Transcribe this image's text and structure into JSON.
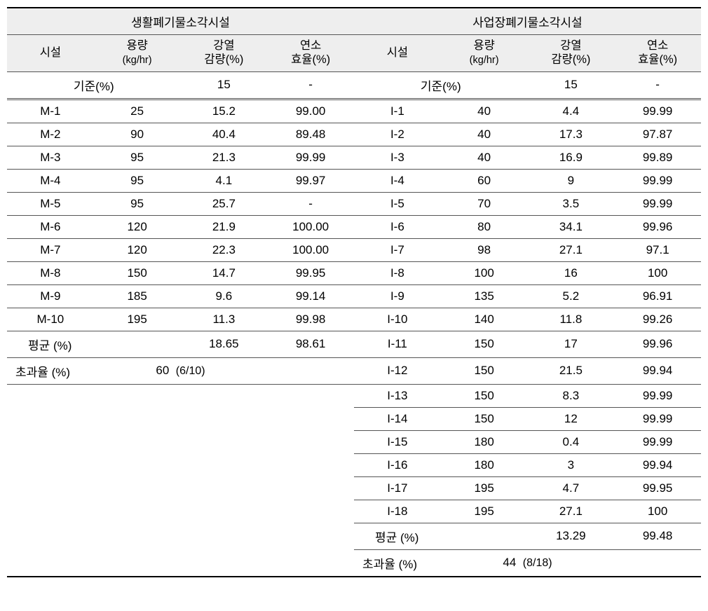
{
  "headers": {
    "left_title": "생활폐기물소각시설",
    "right_title": "사업장폐기물소각시설",
    "col_facility": "시설",
    "col_capacity": "용량",
    "col_capacity_unit": "(kg/hr)",
    "col_ignition": "강열",
    "col_ignition2": "감량(%)",
    "col_combustion": "연소",
    "col_combustion2": "효율(%)"
  },
  "criterion": {
    "label": "기준(%)",
    "val1": "15",
    "val2": "-"
  },
  "left_rows": [
    {
      "f": "M-1",
      "c": "25",
      "i": "15.2",
      "e": "99.00"
    },
    {
      "f": "M-2",
      "c": "90",
      "i": "40.4",
      "e": "89.48"
    },
    {
      "f": "M-3",
      "c": "95",
      "i": "21.3",
      "e": "99.99"
    },
    {
      "f": "M-4",
      "c": "95",
      "i": "4.1",
      "e": "99.97"
    },
    {
      "f": "M-5",
      "c": "95",
      "i": "25.7",
      "e": "-"
    },
    {
      "f": "M-6",
      "c": "120",
      "i": "21.9",
      "e": "100.00"
    },
    {
      "f": "M-7",
      "c": "120",
      "i": "22.3",
      "e": "100.00"
    },
    {
      "f": "M-8",
      "c": "150",
      "i": "14.7",
      "e": "99.95"
    },
    {
      "f": "M-9",
      "c": "185",
      "i": "9.6",
      "e": "99.14"
    },
    {
      "f": "M-10",
      "c": "195",
      "i": "11.3",
      "e": "99.98"
    }
  ],
  "left_avg": {
    "label": "평균 (%)",
    "i": "18.65",
    "e": "98.61"
  },
  "left_exceed": {
    "label": "초과율 (%)",
    "val": "60",
    "detail": "(6/10)"
  },
  "right_rows": [
    {
      "f": "I-1",
      "c": "40",
      "i": "4.4",
      "e": "99.99"
    },
    {
      "f": "I-2",
      "c": "40",
      "i": "17.3",
      "e": "97.87"
    },
    {
      "f": "I-3",
      "c": "40",
      "i": "16.9",
      "e": "99.89"
    },
    {
      "f": "I-4",
      "c": "60",
      "i": "9",
      "e": "99.99"
    },
    {
      "f": "I-5",
      "c": "70",
      "i": "3.5",
      "e": "99.99"
    },
    {
      "f": "I-6",
      "c": "80",
      "i": "34.1",
      "e": "99.96"
    },
    {
      "f": "I-7",
      "c": "98",
      "i": "27.1",
      "e": "97.1"
    },
    {
      "f": "I-8",
      "c": "100",
      "i": "16",
      "e": "100"
    },
    {
      "f": "I-9",
      "c": "135",
      "i": "5.2",
      "e": "96.91"
    },
    {
      "f": "I-10",
      "c": "140",
      "i": "11.8",
      "e": "99.26"
    },
    {
      "f": "I-11",
      "c": "150",
      "i": "17",
      "e": "99.96"
    },
    {
      "f": "I-12",
      "c": "150",
      "i": "21.5",
      "e": "99.94"
    },
    {
      "f": "I-13",
      "c": "150",
      "i": "8.3",
      "e": "99.99"
    },
    {
      "f": "I-14",
      "c": "150",
      "i": "12",
      "e": "99.99"
    },
    {
      "f": "I-15",
      "c": "180",
      "i": "0.4",
      "e": "99.99"
    },
    {
      "f": "I-16",
      "c": "180",
      "i": "3",
      "e": "99.94"
    },
    {
      "f": "I-17",
      "c": "195",
      "i": "4.7",
      "e": "99.95"
    },
    {
      "f": "I-18",
      "c": "195",
      "i": "27.1",
      "e": "100"
    }
  ],
  "right_avg": {
    "label": "평균 (%)",
    "i": "13.29",
    "e": "99.48"
  },
  "right_exceed": {
    "label": "초과율 (%)",
    "val": "44",
    "detail": "(8/18)"
  }
}
